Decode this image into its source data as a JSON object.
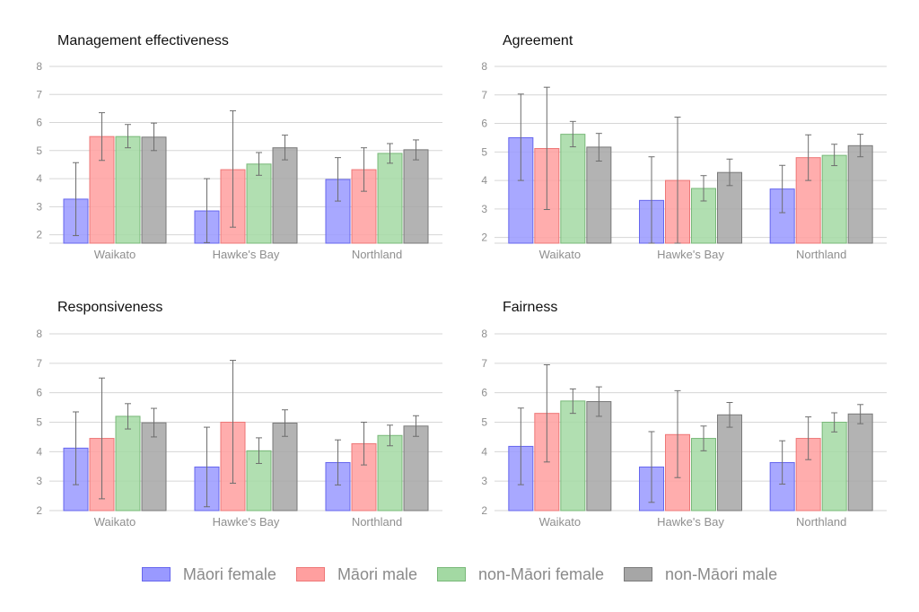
{
  "legend": {
    "items": [
      {
        "label": "Māori female",
        "fill": "#9999ff",
        "stroke": "#6666ee"
      },
      {
        "label": "Māori male",
        "fill": "#ff9f9f",
        "stroke": "#ee7777"
      },
      {
        "label": "non-Māori female",
        "fill": "#a3d9a3",
        "stroke": "#78b878"
      },
      {
        "label": "non-Māori male",
        "fill": "#a6a6a6",
        "stroke": "#7a7a7a"
      }
    ]
  },
  "chart_data": [
    {
      "type": "bar",
      "title": "Management effectiveness",
      "categories": [
        "Waikato",
        "Hawke's Bay",
        "Northland"
      ],
      "ylim": [
        1.7,
        8
      ],
      "yticks": [
        2,
        3,
        4,
        5,
        6,
        7,
        8
      ],
      "grid": true,
      "series": [
        {
          "name": "Māori female",
          "values": [
            3.27,
            2.85,
            3.97
          ],
          "lower": [
            1.97,
            1.72,
            3.2
          ],
          "upper": [
            4.57,
            4.0,
            4.75
          ]
        },
        {
          "name": "Māori male",
          "values": [
            5.5,
            4.32,
            4.32
          ],
          "lower": [
            4.65,
            2.27,
            3.55
          ],
          "upper": [
            6.35,
            6.42,
            5.1
          ]
        },
        {
          "name": "non-Māori female",
          "values": [
            5.5,
            4.52,
            4.9
          ],
          "lower": [
            5.1,
            4.12,
            4.55
          ],
          "upper": [
            5.93,
            4.93,
            5.25
          ]
        },
        {
          "name": "non-Māori male",
          "values": [
            5.48,
            5.1,
            5.03
          ],
          "lower": [
            5.0,
            4.67,
            4.67
          ],
          "upper": [
            5.98,
            5.55,
            5.38
          ]
        }
      ]
    },
    {
      "type": "bar",
      "title": "Agreement",
      "categories": [
        "Waikato",
        "Hawke's Bay",
        "Northland"
      ],
      "ylim": [
        1.8,
        8
      ],
      "yticks": [
        2,
        3,
        4,
        5,
        6,
        7,
        8
      ],
      "grid": true,
      "series": [
        {
          "name": "Māori female",
          "values": [
            5.5,
            3.3,
            3.7
          ],
          "lower": [
            4.0,
            1.8,
            2.87
          ],
          "upper": [
            7.03,
            4.83,
            4.53
          ]
        },
        {
          "name": "Māori male",
          "values": [
            5.12,
            4.0,
            4.8
          ],
          "lower": [
            2.98,
            1.8,
            4.0
          ],
          "upper": [
            7.27,
            6.22,
            5.6
          ]
        },
        {
          "name": "non-Māori female",
          "values": [
            5.62,
            3.72,
            4.88
          ],
          "lower": [
            5.18,
            3.28,
            4.52
          ],
          "upper": [
            6.07,
            4.17,
            5.27
          ]
        },
        {
          "name": "non-Māori male",
          "values": [
            5.17,
            4.28,
            5.22
          ],
          "lower": [
            4.68,
            3.82,
            4.83
          ],
          "upper": [
            5.65,
            4.75,
            5.62
          ]
        }
      ]
    },
    {
      "type": "bar",
      "title": "Responsiveness",
      "categories": [
        "Waikato",
        "Hawke's Bay",
        "Northland"
      ],
      "ylim": [
        2,
        8
      ],
      "yticks": [
        2,
        3,
        4,
        5,
        6,
        7,
        8
      ],
      "grid": true,
      "series": [
        {
          "name": "Māori female",
          "values": [
            4.12,
            3.48,
            3.63
          ],
          "lower": [
            2.88,
            2.13,
            2.87
          ],
          "upper": [
            5.35,
            4.83,
            4.4
          ]
        },
        {
          "name": "Māori male",
          "values": [
            4.45,
            5.0,
            4.27
          ],
          "lower": [
            2.4,
            2.93,
            3.55
          ],
          "upper": [
            6.5,
            7.1,
            5.0
          ]
        },
        {
          "name": "non-Māori female",
          "values": [
            5.2,
            4.03,
            4.55
          ],
          "lower": [
            4.77,
            3.6,
            4.2
          ],
          "upper": [
            5.63,
            4.47,
            4.9
          ]
        },
        {
          "name": "non-Māori male",
          "values": [
            4.98,
            4.97,
            4.87
          ],
          "lower": [
            4.5,
            4.52,
            4.52
          ],
          "upper": [
            5.47,
            5.42,
            5.22
          ]
        }
      ]
    },
    {
      "type": "bar",
      "title": "Fairness",
      "categories": [
        "Waikato",
        "Hawke's Bay",
        "Northland"
      ],
      "ylim": [
        2,
        8
      ],
      "yticks": [
        2,
        3,
        4,
        5,
        6,
        7,
        8
      ],
      "grid": true,
      "series": [
        {
          "name": "Māori female",
          "values": [
            4.18,
            3.48,
            3.63
          ],
          "lower": [
            2.88,
            2.28,
            2.9
          ],
          "upper": [
            5.48,
            4.68,
            4.37
          ]
        },
        {
          "name": "Māori male",
          "values": [
            5.3,
            4.58,
            4.45
          ],
          "lower": [
            3.65,
            3.12,
            3.73
          ],
          "upper": [
            6.95,
            6.07,
            5.18
          ]
        },
        {
          "name": "non-Māori female",
          "values": [
            5.72,
            4.45,
            5.0
          ],
          "lower": [
            5.3,
            4.03,
            4.67
          ],
          "upper": [
            6.13,
            4.87,
            5.32
          ]
        },
        {
          "name": "non-Māori male",
          "values": [
            5.7,
            5.25,
            5.28
          ],
          "lower": [
            5.2,
            4.83,
            4.95
          ],
          "upper": [
            6.2,
            5.67,
            5.6
          ]
        }
      ]
    }
  ]
}
